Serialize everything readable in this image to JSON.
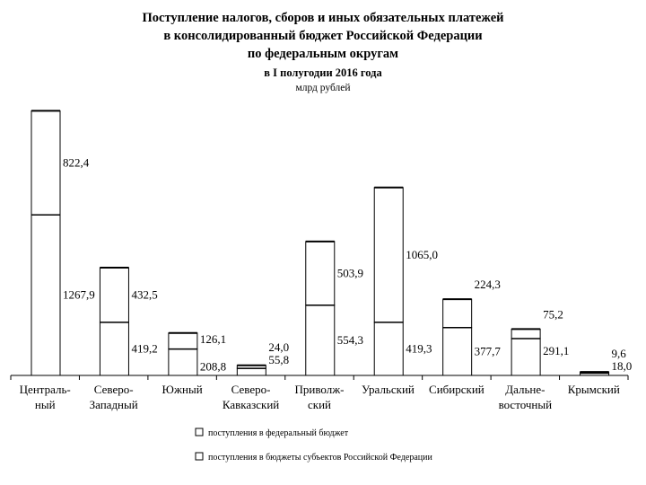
{
  "chart_data": {
    "type": "bar",
    "stacked": true,
    "title": "Поступление налогов, сборов и иных обязательных платежей в консолидированный бюджет Российской Федерации по федеральным округам",
    "title_lines": [
      "Поступление налогов, сборов и иных обязательных платежей",
      "в консолидированный бюджет Российской Федерации",
      "по федеральным округам"
    ],
    "subtitle": "в I полугодии 2016 года",
    "units": "млрд рублей",
    "categories": [
      [
        "Централь-",
        "ный"
      ],
      [
        "Северо-",
        "Западный"
      ],
      [
        "Южный"
      ],
      [
        "Северо-",
        "Кавказский"
      ],
      [
        "Приволж-",
        "ский"
      ],
      [
        "Уральский"
      ],
      [
        "Сибирский"
      ],
      [
        "Дальне-",
        "восточный"
      ],
      [
        "Крымский"
      ]
    ],
    "series": [
      {
        "name": "поступления в бюджеты субъектов Российской Федерации",
        "values": [
          1267.9,
          419.2,
          208.8,
          55.8,
          554.3,
          419.3,
          377.7,
          291.1,
          18.0
        ],
        "labels": [
          "1267,9",
          "419,2",
          "208,8",
          "55,8",
          "554,3",
          "419,3",
          "377,7",
          "291,1",
          "18,0"
        ]
      },
      {
        "name": "поступления в федеральный бюджет",
        "values": [
          822.4,
          432.5,
          126.1,
          24.0,
          503.9,
          1065.0,
          224.3,
          75.2,
          9.6
        ],
        "labels": [
          "822,4",
          "432,5",
          "126,1",
          "24,0",
          "503,9",
          "1065,0",
          "224,3",
          "75,2",
          "9,6"
        ]
      }
    ],
    "legend": [
      "поступления в федеральный бюджет",
      "поступления в бюджеты субъектов Российской Федерации"
    ],
    "legend_position": "bottom",
    "ylim": [
      0,
      2100
    ],
    "grid": false
  }
}
